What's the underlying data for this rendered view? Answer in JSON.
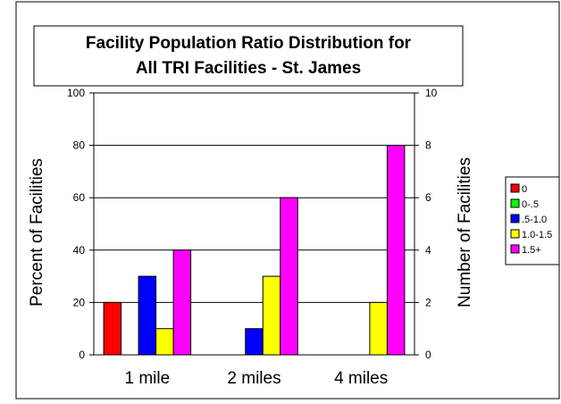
{
  "chart_data": {
    "type": "bar",
    "title_lines": [
      "Facility Population Ratio Distribution for",
      "All TRI Facilities - St. James"
    ],
    "ylabel": "Percent of Facilities",
    "y2label": "Number of Facilities",
    "categories": [
      "1 mile",
      "2 miles",
      "4 miles"
    ],
    "ylim": [
      0,
      100
    ],
    "y2lim": [
      0,
      10
    ],
    "yticks": [
      0,
      20,
      40,
      60,
      80,
      100
    ],
    "y2ticks": [
      0,
      2,
      4,
      6,
      8,
      10
    ],
    "grid": true,
    "legend_position": "right",
    "series": [
      {
        "name": "0",
        "color": "#ff0000",
        "values": [
          20,
          0,
          0
        ]
      },
      {
        "name": "0-.5",
        "color": "#00ff00",
        "values": [
          0,
          0,
          0
        ]
      },
      {
        "name": ".5-1.0",
        "color": "#0000ff",
        "values": [
          30,
          10,
          0
        ]
      },
      {
        "name": "1.0-1.5",
        "color": "#ffff00",
        "values": [
          10,
          30,
          20
        ]
      },
      {
        "name": "1.5+",
        "color": "#ff00ff",
        "values": [
          40,
          60,
          80
        ]
      }
    ]
  }
}
